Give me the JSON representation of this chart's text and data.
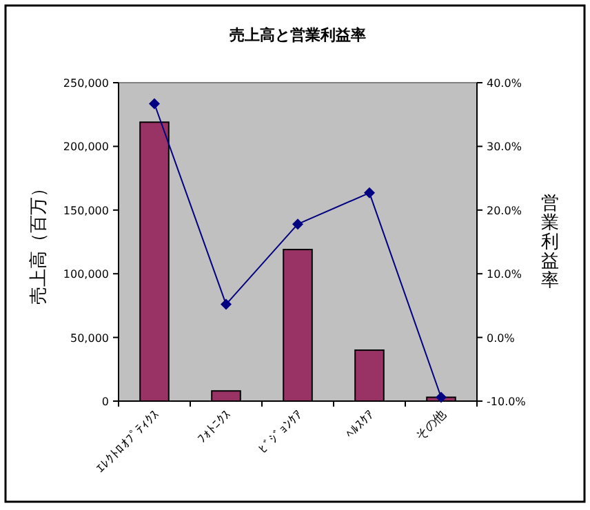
{
  "chart_data": {
    "type": "bar",
    "title": "売上高と営業利益率",
    "ylabel": "売上高（百万）",
    "y2label": "営業利益率",
    "categories": [
      "ｴﾚｸﾄﾛｵﾌﾟﾃｨｸｽ",
      "ﾌｫﾄﾆｸｽ",
      "ﾋﾞｼﾞｮﾝｹｱ",
      "ﾍﾙｽｹｱ",
      "その他"
    ],
    "series": [
      {
        "color": "#993366",
        "values": [
          219000,
          8000,
          119000,
          40000,
          3000
        ]
      },
      {
        "type": "line",
        "axis": "y2",
        "color": "#000080",
        "marker": "diamond",
        "values": [
          36.7,
          5.2,
          17.8,
          22.7,
          -9.4
        ]
      }
    ],
    "ylim": [
      0,
      250000
    ],
    "yticks": [
      0,
      {
        "value": 50000,
        "label": "50,000"
      },
      {
        "value": 100000,
        "label": "100,000"
      },
      {
        "value": 150000,
        "label": "150,000"
      },
      {
        "value": 200000,
        "label": "200,000"
      },
      {
        "value": 250000,
        "label": "250,000"
      }
    ],
    "y2lim": [
      -10,
      40
    ],
    "y2ticks": [
      {
        "value": -10,
        "label": "-10.0%"
      },
      {
        "value": 0,
        "label": "0.0%"
      },
      {
        "value": 10,
        "label": "10.0%"
      },
      {
        "value": 20,
        "label": "20.0%"
      },
      {
        "value": 30,
        "label": "30.0%"
      },
      {
        "value": 40,
        "label": "40.0%"
      }
    ],
    "grid": false
  }
}
